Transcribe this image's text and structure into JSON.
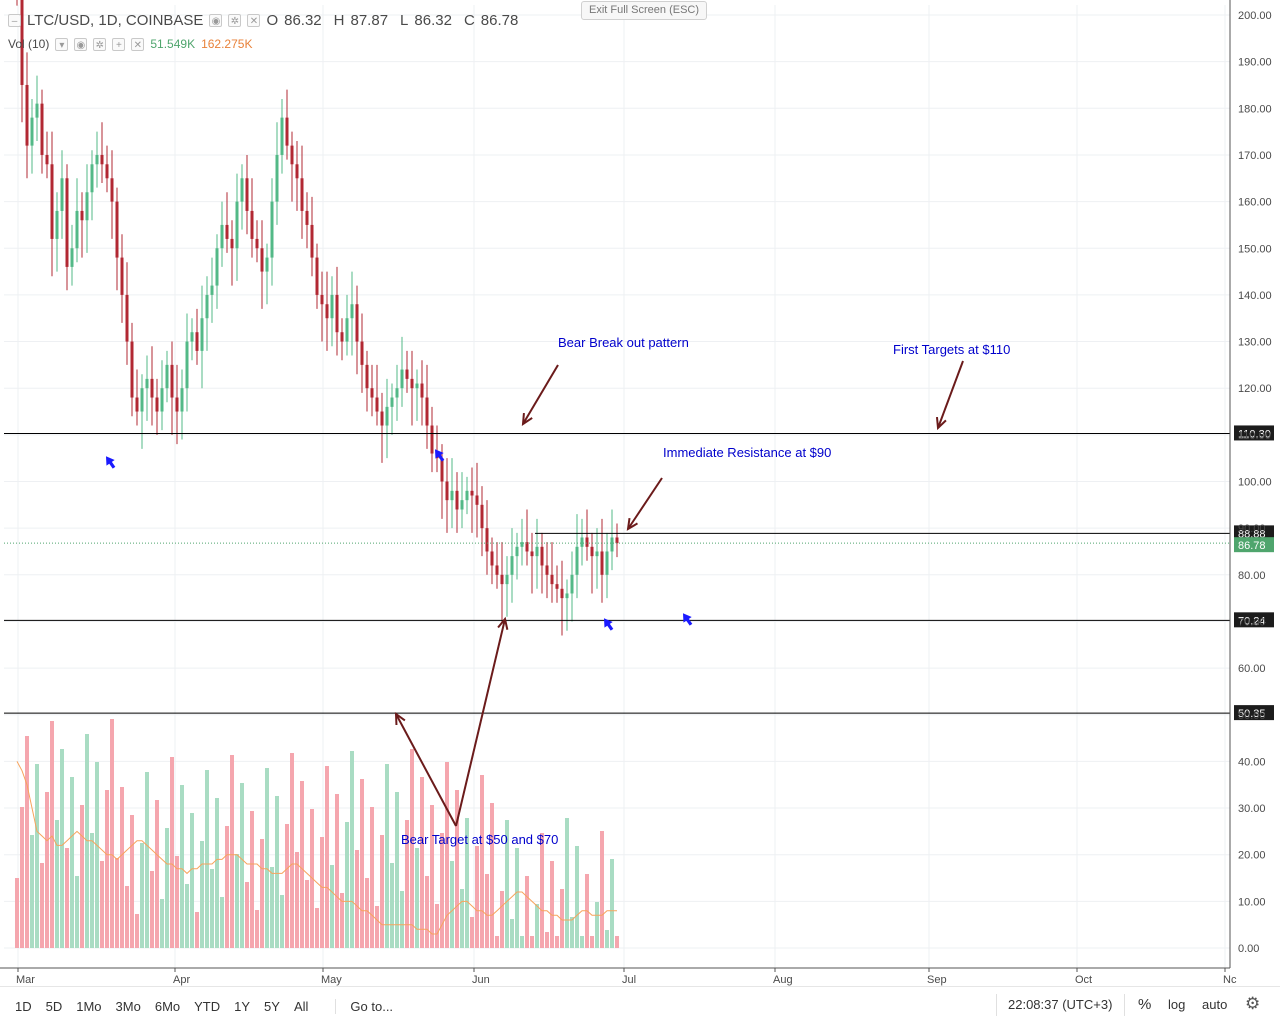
{
  "legend": {
    "symbol": "LTC/USD, 1D, COINBASE",
    "o_label": "O",
    "o_value": "86.32",
    "h_label": "H",
    "h_value": "87.87",
    "l_label": "L",
    "l_value": "86.32",
    "c_label": "C",
    "c_value": "86.78",
    "vol_label": "Vol (10)",
    "vol_value": "51.549K",
    "vol_ma_value": "162.275K"
  },
  "exit_fullscreen": "Exit Full Screen (ESC)",
  "colors": {
    "up": "#53b987",
    "down": "#b22833",
    "vol_up": "#a9dcc3",
    "vol_down": "#f5a6ae",
    "vol_ma": "#f7a35c",
    "annotation_text": "#0000cc",
    "annotation_arrow": "#6b1b1b",
    "marker_arrow": "#1a1aff",
    "hline": "#000000",
    "current_price": "#4fa56d"
  },
  "chart_data": {
    "type": "candlestick",
    "symbol": "LTC/USD",
    "interval": "1D",
    "exchange": "COINBASE",
    "price_axis": {
      "min": 0,
      "max": 200,
      "ticks": [
        "200.00",
        "190.00",
        "180.00",
        "170.00",
        "160.00",
        "150.00",
        "140.00",
        "130.00",
        "120.00",
        "110.00",
        "100.00",
        "90.00",
        "80.00",
        "70.00",
        "60.00",
        "50.00",
        "40.00",
        "30.00",
        "20.00",
        "10.00",
        "0.00"
      ]
    },
    "time_axis": [
      "Mar",
      "Apr",
      "May",
      "Jun",
      "Jul",
      "Aug",
      "Sep",
      "Oct",
      "Nc"
    ],
    "horizontal_levels": [
      {
        "value": 110.3,
        "label": "110.30"
      },
      {
        "value": 88.88,
        "label": "88.88"
      },
      {
        "value": 70.24,
        "label": "70.24"
      },
      {
        "value": 50.35,
        "label": "50.35"
      }
    ],
    "last_price": {
      "value": 86.78,
      "label": "86.78"
    },
    "close_series": [
      205,
      185,
      172,
      178,
      181,
      170,
      168,
      152,
      158,
      165,
      146,
      150,
      158,
      156,
      162,
      168,
      170,
      168,
      165,
      160,
      148,
      140,
      130,
      118,
      115,
      120,
      122,
      118,
      115,
      120,
      125,
      118,
      115,
      120,
      130,
      132,
      128,
      135,
      140,
      142,
      150,
      155,
      152,
      150,
      160,
      165,
      158,
      152,
      150,
      145,
      148,
      160,
      170,
      178,
      172,
      168,
      165,
      158,
      155,
      148,
      140,
      138,
      135,
      140,
      132,
      130,
      135,
      138,
      130,
      125,
      120,
      118,
      115,
      112,
      116,
      118,
      120,
      124,
      122,
      120,
      121,
      118,
      112,
      106,
      105,
      100,
      96,
      98,
      94,
      96,
      98,
      97,
      95,
      90,
      85,
      82,
      80,
      78,
      80,
      84,
      86,
      87,
      85,
      84,
      86,
      82,
      80,
      78,
      77,
      75,
      76,
      80,
      86,
      88,
      86,
      84,
      85,
      80,
      85,
      88,
      86.78
    ],
    "volume_ma_series": [
      40,
      38,
      35,
      30,
      25,
      24,
      23,
      24,
      22,
      22,
      23,
      24,
      25,
      24,
      23,
      23,
      22,
      21,
      20,
      20,
      19,
      20,
      21,
      22,
      23,
      23,
      22,
      21,
      20,
      19,
      18,
      18,
      17,
      17,
      16,
      17,
      17,
      18,
      18,
      18,
      19,
      19,
      20,
      20,
      20,
      19,
      18,
      18,
      18,
      17,
      17,
      16,
      16,
      16,
      17,
      18,
      18,
      17,
      16,
      15,
      14,
      13,
      13,
      12,
      11,
      10,
      10,
      10,
      9,
      8,
      8,
      7,
      6,
      5,
      5,
      5,
      5,
      5,
      5,
      5,
      4,
      4,
      4,
      3,
      3,
      5,
      7,
      8,
      9,
      10,
      10,
      9,
      8,
      8,
      7,
      7,
      8,
      9,
      10,
      11,
      12,
      12,
      11,
      10,
      9,
      8,
      8,
      7,
      7,
      6,
      6,
      6,
      7,
      8,
      8,
      7,
      7,
      7,
      8,
      8,
      8
    ],
    "annotations": [
      {
        "text": "Bear Break out pattern"
      },
      {
        "text": "First Targets at $110"
      },
      {
        "text": "Immediate Resistance at $90"
      },
      {
        "text": "Bear Target at $50 and $70"
      }
    ]
  },
  "toolbar": {
    "ranges": [
      "1D",
      "5D",
      "1Mo",
      "3Mo",
      "6Mo",
      "YTD",
      "1Y",
      "5Y",
      "All"
    ],
    "goto": "Go to...",
    "clock": "22:08:37 (UTC+3)",
    "percent": "%",
    "log": "log",
    "auto": "auto"
  }
}
